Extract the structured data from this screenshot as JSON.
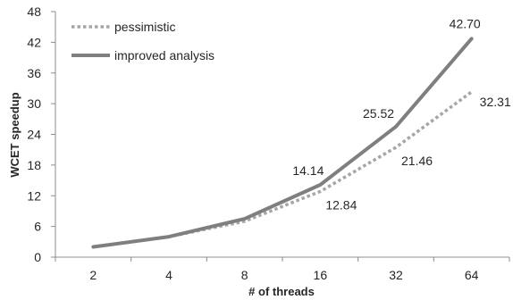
{
  "chart_data": {
    "type": "line",
    "title": "",
    "xlabel": "# of threads",
    "ylabel": "WCET speedup",
    "categories": [
      "2",
      "4",
      "8",
      "16",
      "32",
      "64"
    ],
    "ylim": [
      0,
      48
    ],
    "yticks": [
      0,
      6,
      12,
      18,
      24,
      30,
      36,
      42,
      48
    ],
    "grid": false,
    "legend_position": "top-left",
    "series": [
      {
        "name": "pessimistic",
        "values": [
          2,
          4,
          7,
          12.84,
          21.46,
          32.31
        ],
        "labels": [
          "",
          "",
          "",
          "12.84",
          "21.46",
          "32.31"
        ],
        "color": "#a6a6a6",
        "style": "dotted"
      },
      {
        "name": "improved analysis",
        "values": [
          2,
          4,
          7.5,
          14.14,
          25.52,
          42.7
        ],
        "labels": [
          "",
          "",
          "",
          "14.14",
          "25.52",
          "42.70"
        ],
        "color": "#7f7f7f",
        "style": "solid"
      }
    ]
  }
}
